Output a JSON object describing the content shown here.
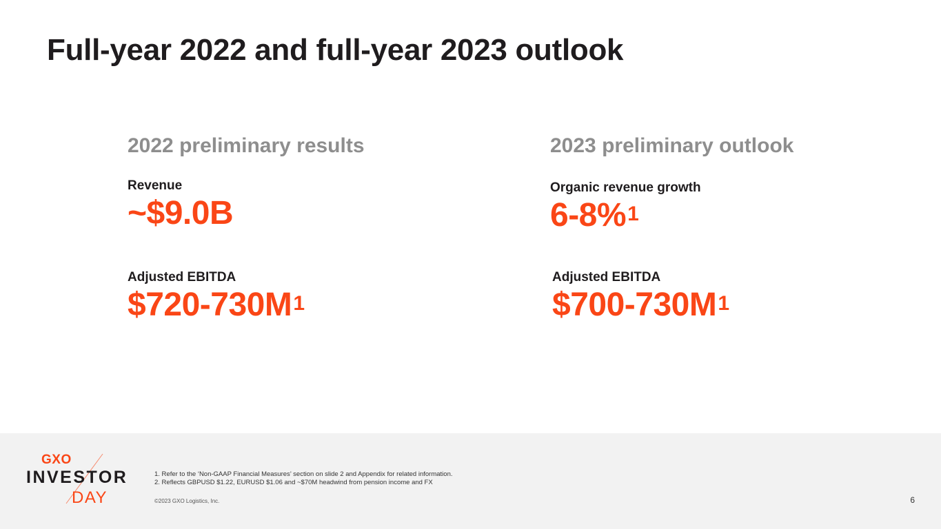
{
  "slide": {
    "title": "Full-year 2022 and full-year 2023 outlook",
    "page_number": "6"
  },
  "left": {
    "heading": "2022 preliminary results",
    "metrics": [
      {
        "label": "Revenue",
        "value": "~$9.0B",
        "sup": ""
      },
      {
        "label": "Adjusted EBITDA",
        "value": "$720-730M",
        "sup": "1"
      }
    ]
  },
  "right": {
    "heading": "2023 preliminary outlook",
    "metrics": [
      {
        "label": "Organic revenue growth",
        "value": "6-8%",
        "sup": "1"
      },
      {
        "label": "Adjusted EBITDA",
        "value": "$700-730M",
        "sup": "1"
      }
    ]
  },
  "footer": {
    "logo": {
      "brand": "GXO",
      "line1": "INVESTOR",
      "line2": "DAY"
    },
    "footnotes": [
      "1. Refer to the ‘Non-GAAP Financial Measures’ section on slide 2 and Appendix for related information.",
      "2. Reflects GBPUSD $1.22, EURUSD $1.06 and ~$70M headwind from pension income and FX"
    ],
    "copyright": "©2023 GXO Logistics, Inc."
  },
  "colors": {
    "accent": "#fa4616",
    "heading_gray": "#8e8e8e",
    "text_dark": "#1f1c1e",
    "footer_bg": "#f2f2f2"
  }
}
